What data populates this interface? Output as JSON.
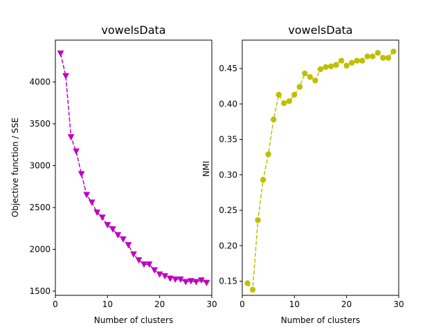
{
  "chart_data": [
    {
      "type": "line",
      "title": "vowelsData",
      "xlabel": "Number of clusters",
      "ylabel": "Objective function / SSE",
      "xlim": [
        0,
        30
      ],
      "ylim": [
        1450,
        4500
      ],
      "xticks": [
        0,
        10,
        20,
        30
      ],
      "yticks": [
        1500,
        2000,
        2500,
        3000,
        3500,
        4000
      ],
      "grid": false,
      "series": [
        {
          "color": "#bf00bf",
          "line_style": "dashed",
          "marker": "triangle-down",
          "x": [
            1,
            2,
            3,
            4,
            5,
            6,
            7,
            8,
            9,
            10,
            11,
            12,
            13,
            14,
            15,
            16,
            17,
            18,
            19,
            20,
            21,
            22,
            23,
            24,
            25,
            26,
            27,
            28,
            29
          ],
          "values": [
            4340,
            4070,
            3340,
            3170,
            2900,
            2650,
            2560,
            2440,
            2380,
            2290,
            2240,
            2170,
            2120,
            2050,
            1940,
            1870,
            1820,
            1820,
            1750,
            1700,
            1680,
            1650,
            1640,
            1640,
            1610,
            1620,
            1610,
            1630,
            1600
          ]
        }
      ]
    },
    {
      "type": "line",
      "title": "vowelsData",
      "xlabel": "Number of clusters",
      "ylabel": "NMI",
      "xlim": [
        0,
        30
      ],
      "ylim": [
        0.13,
        0.49
      ],
      "xticks": [
        0,
        10,
        20,
        30
      ],
      "yticks": [
        0.15,
        0.2,
        0.25,
        0.3,
        0.35,
        0.4,
        0.45
      ],
      "grid": false,
      "series": [
        {
          "color": "#bfbf00",
          "line_style": "dashed",
          "marker": "circle",
          "x": [
            1,
            2,
            3,
            4,
            5,
            6,
            7,
            8,
            9,
            10,
            11,
            12,
            13,
            14,
            15,
            16,
            17,
            18,
            19,
            20,
            21,
            22,
            23,
            24,
            25,
            26,
            27,
            28,
            29
          ],
          "values": [
            0.147,
            0.138,
            0.236,
            0.293,
            0.329,
            0.378,
            0.413,
            0.401,
            0.404,
            0.413,
            0.424,
            0.443,
            0.438,
            0.433,
            0.449,
            0.452,
            0.453,
            0.455,
            0.461,
            0.454,
            0.458,
            0.461,
            0.461,
            0.467,
            0.467,
            0.472,
            0.465,
            0.465,
            0.474
          ]
        }
      ]
    }
  ]
}
